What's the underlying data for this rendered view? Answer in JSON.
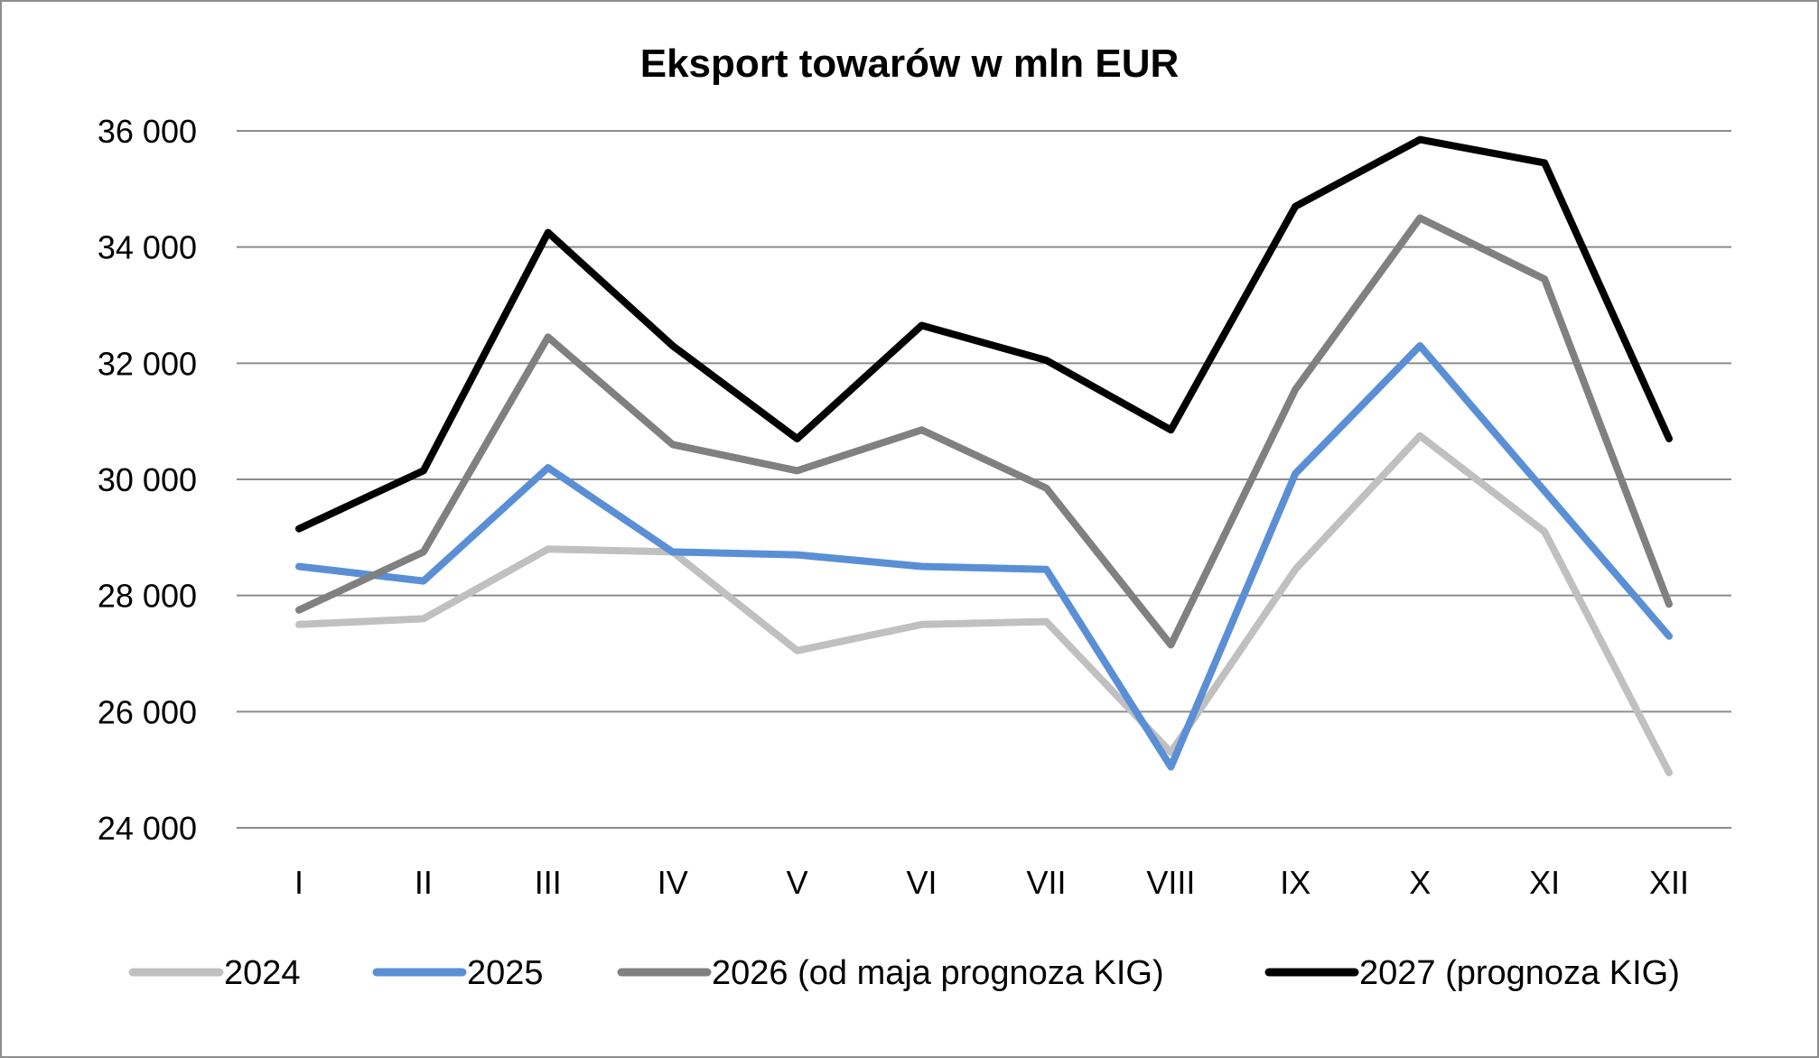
{
  "chart_data": {
    "type": "line",
    "title": "Eksport towarów w mln EUR",
    "xlabel": "",
    "ylabel": "",
    "categories": [
      "I",
      "II",
      "III",
      "IV",
      "V",
      "VI",
      "VII",
      "VIII",
      "IX",
      "X",
      "XI",
      "XII"
    ],
    "ylim": [
      24000,
      36000
    ],
    "yticks": [
      24000,
      26000,
      28000,
      30000,
      32000,
      34000,
      36000
    ],
    "ytick_labels": [
      "24 000",
      "26 000",
      "28 000",
      "30 000",
      "32 000",
      "34 000",
      "36 000"
    ],
    "grid": true,
    "legend_position": "bottom",
    "series": [
      {
        "name": "2024",
        "color": "#c0c0c0",
        "values": [
          27500,
          27600,
          28800,
          28750,
          27050,
          27500,
          27550,
          25300,
          28450,
          30750,
          29100,
          24950
        ]
      },
      {
        "name": "2025",
        "color": "#5a8fd6",
        "values": [
          28500,
          28250,
          30200,
          28750,
          28700,
          28500,
          28450,
          25050,
          30100,
          32300,
          29800,
          27300
        ]
      },
      {
        "name": "2026 (od maja prognoza KIG)",
        "color": "#808080",
        "values": [
          27750,
          28750,
          32450,
          30600,
          30150,
          30850,
          29850,
          27150,
          31550,
          34500,
          33450,
          27850
        ]
      },
      {
        "name": "2027 (prognoza KIG)",
        "color": "#000000",
        "values": [
          29150,
          30150,
          34250,
          32300,
          30700,
          32650,
          32050,
          30850,
          34700,
          35850,
          35450,
          30700
        ]
      }
    ]
  }
}
